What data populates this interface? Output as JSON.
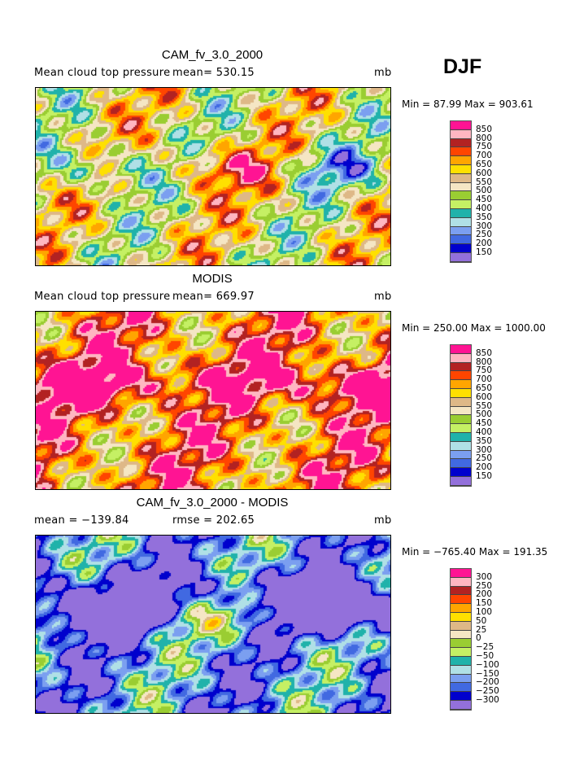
{
  "season": "DJF",
  "units": "mb",
  "palette": [
    "#ff1493",
    "#ffb6c1",
    "#b22222",
    "#ff4500",
    "#ffa500",
    "#ffe000",
    "#deb887",
    "#f5e6c4",
    "#9acd32",
    "#c5f064",
    "#20b2aa",
    "#b0e0e6",
    "#7b9ff0",
    "#4169e1",
    "#0000cd",
    "#9370db"
  ],
  "panels": [
    {
      "title": "CAM_fv_3.0_2000",
      "left": "Mean cloud top pressure",
      "stat": "mean= 530.15",
      "units": "mb",
      "minmax": "Min =  87.99 Max = 903.61",
      "levels": [
        "850",
        "800",
        "750",
        "700",
        "650",
        "600",
        "550",
        "500",
        "450",
        "400",
        "350",
        "300",
        "250",
        "200",
        "150"
      ]
    },
    {
      "title": "MODIS",
      "left": "Mean cloud top pressure",
      "stat": "mean= 669.97",
      "units": "mb",
      "minmax": "Min = 250.00 Max = 1000.00",
      "levels": [
        "850",
        "800",
        "750",
        "700",
        "650",
        "600",
        "550",
        "500",
        "450",
        "400",
        "350",
        "300",
        "250",
        "200",
        "150"
      ]
    },
    {
      "title": "CAM_fv_3.0_2000 - MODIS",
      "left": "mean = −139.84",
      "stat": "rmse = 202.65",
      "units": "mb",
      "minmax": "Min = −765.40 Max = 191.35",
      "levels": [
        "300",
        "250",
        "200",
        "150",
        "100",
        "50",
        "25",
        "0",
        "−25",
        "−50",
        "−100",
        "−150",
        "−200",
        "−250",
        "−300"
      ]
    }
  ]
}
